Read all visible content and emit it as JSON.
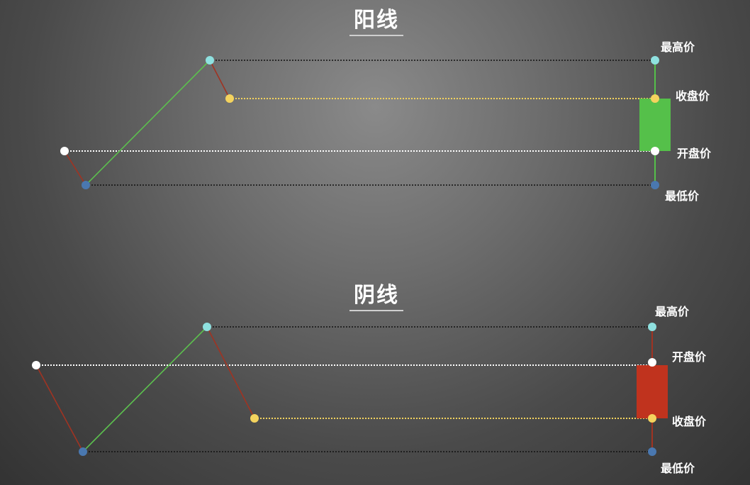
{
  "colors": {
    "high": "#8fe1e0",
    "close": "#f4d35e",
    "open": "#ffffff",
    "low": "#4a78b0",
    "up_body": "#55c04a",
    "down_body": "#c0331e",
    "up_path": "#5cc04e",
    "down_path": "#a03322"
  },
  "yang": {
    "title": "阳线",
    "labels": {
      "high": "最高价",
      "close": "收盘价",
      "open": "开盘价",
      "low": "最低价"
    }
  },
  "yin": {
    "title": "阴线",
    "labels": {
      "high": "最高价",
      "open": "开盘价",
      "close": "收盘价",
      "low": "最低价"
    }
  }
}
